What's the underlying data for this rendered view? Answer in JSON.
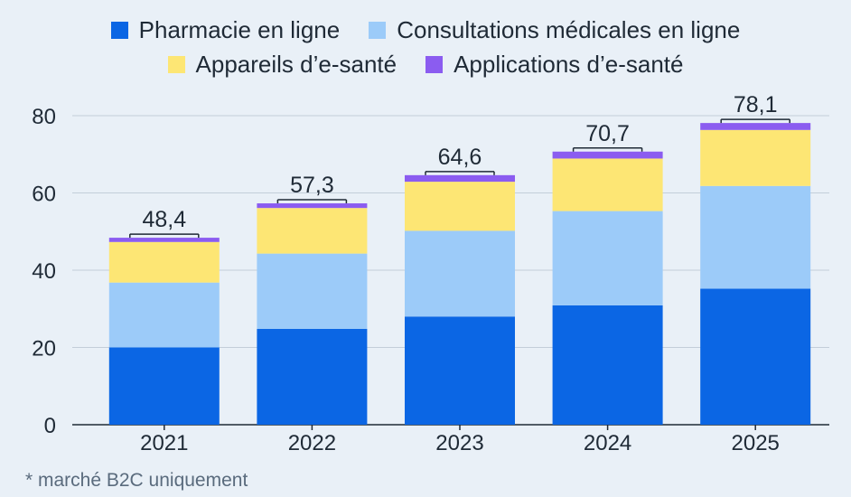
{
  "chart_data": {
    "type": "bar",
    "stacked": true,
    "categories": [
      "2021",
      "2022",
      "2023",
      "2024",
      "2025"
    ],
    "series": [
      {
        "name": "Pharmacie en ligne",
        "color": "#0b66e4",
        "values": [
          20.0,
          24.8,
          28.0,
          30.9,
          35.2
        ]
      },
      {
        "name": "Consultations médicales en ligne",
        "color": "#9ccbf9",
        "values": [
          16.8,
          19.5,
          22.2,
          24.4,
          26.6
        ]
      },
      {
        "name": "Appareils d’e-santé",
        "color": "#fde674",
        "values": [
          10.5,
          11.8,
          12.7,
          13.6,
          14.5
        ]
      },
      {
        "name": "Applications d’e-santé",
        "color": "#8b5cf0",
        "values": [
          1.1,
          1.2,
          1.7,
          1.8,
          1.8
        ]
      }
    ],
    "totals": [
      "48,4",
      "57,3",
      "64,6",
      "70,7",
      "78,1"
    ],
    "yticks": [
      "0",
      "20",
      "40",
      "60",
      "80"
    ],
    "ylim": [
      0,
      80
    ],
    "grid": true,
    "legend": "top"
  },
  "footnote": "* marché B2C uniquement"
}
